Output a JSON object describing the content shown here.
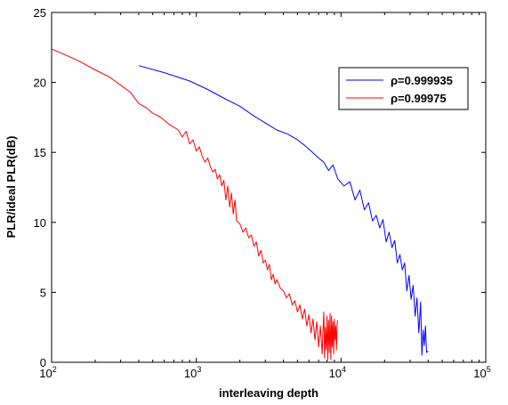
{
  "chart_data": {
    "type": "line",
    "title": "",
    "xlabel": "interleaving depth",
    "ylabel": "PLR/ideal PLR(dB)",
    "xscale": "log",
    "xlim": [
      100,
      100000
    ],
    "ylim": [
      0,
      25
    ],
    "grid": false,
    "legend_position": "top-right",
    "x_ticks": [
      {
        "value": 100,
        "base": "10",
        "exp": "2"
      },
      {
        "value": 1000,
        "base": "10",
        "exp": "3"
      },
      {
        "value": 10000,
        "base": "10",
        "exp": "4"
      },
      {
        "value": 100000,
        "base": "10",
        "exp": "5"
      }
    ],
    "y_ticks": [
      0,
      5,
      10,
      15,
      20,
      25
    ],
    "series": [
      {
        "name": "ρ=0.999935",
        "color": "#0000ff",
        "x": [
          400,
          600,
          900,
          1200,
          1600,
          2000,
          2500,
          3000,
          3600,
          4300,
          5000,
          5600,
          6200,
          7000,
          7600,
          8200,
          8800,
          9500,
          10500,
          11500,
          12500,
          13500,
          14500,
          15500,
          16500,
          17500,
          18500,
          19500,
          20500,
          21500,
          22500,
          23500,
          24500,
          25500,
          26500,
          27500,
          28500,
          29500,
          30500,
          31500,
          32500,
          33500,
          34500,
          35500,
          36200,
          36900,
          37600,
          38300,
          39000,
          40000
        ],
        "y": [
          21.2,
          20.7,
          20.1,
          19.5,
          18.8,
          18.3,
          17.6,
          17.1,
          16.6,
          16.3,
          15.9,
          15.5,
          15.1,
          14.6,
          14.3,
          13.7,
          14.1,
          13.1,
          12.6,
          12.9,
          11.6,
          12.3,
          10.9,
          11.4,
          10.1,
          10.5,
          9.6,
          10.2,
          8.6,
          9.3,
          8.2,
          8.7,
          7.1,
          7.7,
          6.6,
          7.1,
          5.1,
          6.2,
          4.5,
          5.5,
          3.3,
          4.6,
          2.1,
          4.3,
          0.5,
          2.3,
          1.2,
          2.6,
          0.7,
          0.8
        ]
      },
      {
        "name": "ρ=0.99975",
        "color": "#ff0000",
        "x": [
          100,
          150,
          200,
          250,
          300,
          350,
          400,
          450,
          500,
          550,
          600,
          650,
          700,
          750,
          800,
          850,
          900,
          950,
          1000,
          1050,
          1100,
          1150,
          1200,
          1250,
          1300,
          1350,
          1400,
          1450,
          1500,
          1550,
          1600,
          1650,
          1700,
          1750,
          1800,
          1850,
          1900,
          2000,
          2100,
          2200,
          2300,
          2400,
          2500,
          2600,
          2700,
          2800,
          2900,
          3000,
          3100,
          3200,
          3300,
          3400,
          3500,
          3600,
          3800,
          4000,
          4200,
          4400,
          4600,
          4800,
          5000,
          5200,
          5400,
          5600,
          5800,
          6000,
          6200,
          6400,
          6600,
          6800,
          7000,
          7200,
          7400,
          7600,
          7700,
          7800,
          7900,
          8000,
          8100,
          8200,
          8300,
          8400,
          8500,
          8600,
          8700,
          8800,
          8900,
          9000,
          9100,
          9200,
          9300,
          9400,
          9500
        ],
        "y": [
          22.4,
          21.6,
          20.9,
          20.4,
          19.8,
          19.3,
          18.5,
          18.2,
          17.8,
          17.6,
          17.3,
          17.0,
          16.8,
          16.6,
          16.1,
          16.5,
          15.6,
          15.9,
          15.1,
          15.4,
          14.7,
          14.3,
          14.6,
          14.0,
          13.6,
          13.8,
          13.1,
          13.4,
          12.6,
          13.0,
          11.6,
          12.6,
          11.1,
          12.1,
          10.6,
          11.6,
          10.1,
          9.9,
          9.3,
          9.6,
          8.9,
          9.1,
          8.3,
          8.6,
          7.6,
          8.0,
          7.1,
          7.3,
          6.6,
          7.0,
          5.9,
          6.3,
          5.6,
          5.9,
          5.3,
          5.1,
          4.6,
          4.9,
          4.1,
          4.4,
          3.6,
          4.1,
          3.1,
          3.8,
          2.6,
          3.4,
          2.1,
          3.1,
          1.6,
          2.9,
          1.1,
          2.6,
          0.6,
          3.6,
          0.3,
          2.5,
          0.9,
          3.3,
          0.2,
          3.0,
          0.7,
          3.5,
          0.2,
          3.3,
          1.1,
          2.9,
          0.6,
          3.1,
          1.6,
          2.6,
          0.9,
          2.8,
          3.0
        ]
      }
    ]
  }
}
